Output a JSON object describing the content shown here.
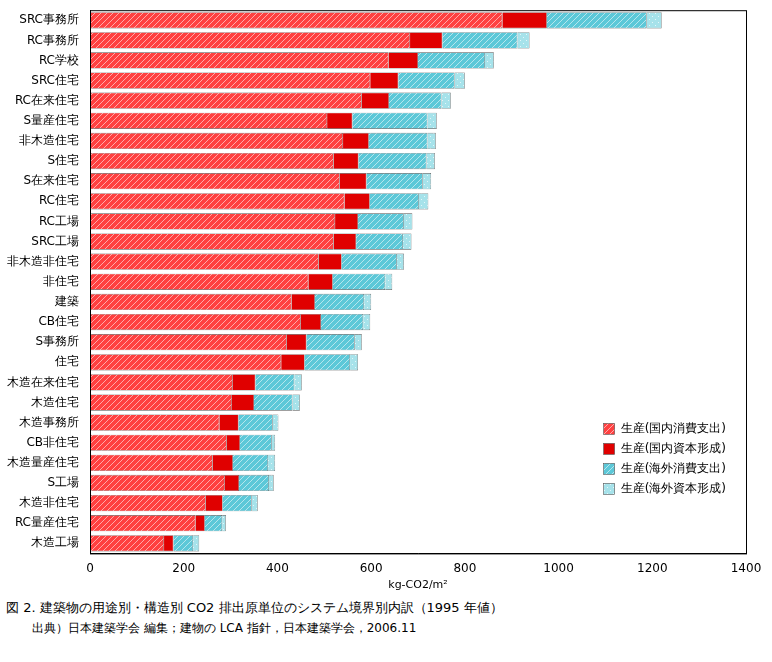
{
  "chart_data": {
    "type": "bar",
    "orientation": "horizontal",
    "stacked": true,
    "grid": false,
    "legend": "lower right",
    "x_label": "kg-CO2/m²",
    "caption": "図 2. 建築物の用途別・構造別 CO2 排出原単位のシステム境界別内訳（1995 年値）",
    "source": "出典）日本建築学会 編集；建物の LCA 指針，日本建築学会，2006.11",
    "categories": [
      "SRC事務所",
      "RC事務所",
      "RC学校",
      "SRC住宅",
      "RC在来住宅",
      "S量産住宅",
      "非木造住宅",
      "S住宅",
      "S在来住宅",
      "RC住宅",
      "RC工場",
      "SRC工場",
      "非木造非住宅",
      "非住宅",
      "建築",
      "CB住宅",
      "S事務所",
      "住宅",
      "木造在来住宅",
      "木造住宅",
      "木造事務所",
      "CB非住宅",
      "木造量産住宅",
      "S工場",
      "木造非住宅",
      "RC量産住宅",
      "木造工場"
    ],
    "series": [
      {
        "name": "生産(国内消費支出)",
        "color": "#ff4040",
        "values": [
          880,
          683,
          637,
          598,
          580,
          506,
          540,
          520,
          533,
          543,
          523,
          520,
          488,
          466,
          430,
          450,
          420,
          408,
          305,
          303,
          276,
          292,
          262,
          288,
          247,
          225,
          158
        ]
      },
      {
        "name": "生産(国内資本形成)",
        "color": "#e00000",
        "values": [
          95,
          69,
          63,
          60,
          58,
          54,
          55,
          53,
          57,
          54,
          49,
          48,
          49,
          52,
          50,
          43,
          42,
          50,
          48,
          47,
          41,
          28,
          43,
          30,
          36,
          20,
          20
        ]
      },
      {
        "name": "生産(海外消費支出)",
        "color": "#5cc8d8",
        "values": [
          213,
          160,
          143,
          120,
          112,
          160,
          125,
          145,
          120,
          105,
          98,
          100,
          118,
          112,
          105,
          90,
          103,
          97,
          83,
          82,
          73,
          68,
          75,
          64,
          62,
          37,
          42
        ]
      },
      {
        "name": "生産(海外資本形成)",
        "color": "#a6e2ea",
        "values": [
          32,
          26,
          19,
          22,
          20,
          20,
          18,
          18,
          18,
          20,
          18,
          18,
          15,
          15,
          15,
          15,
          15,
          17,
          16,
          16,
          12,
          7,
          15,
          10,
          13,
          8,
          13
        ]
      }
    ],
    "xlim": [
      0,
      1400
    ],
    "xticks": [
      0,
      200,
      400,
      600,
      800,
      1000,
      1200,
      1400
    ]
  }
}
